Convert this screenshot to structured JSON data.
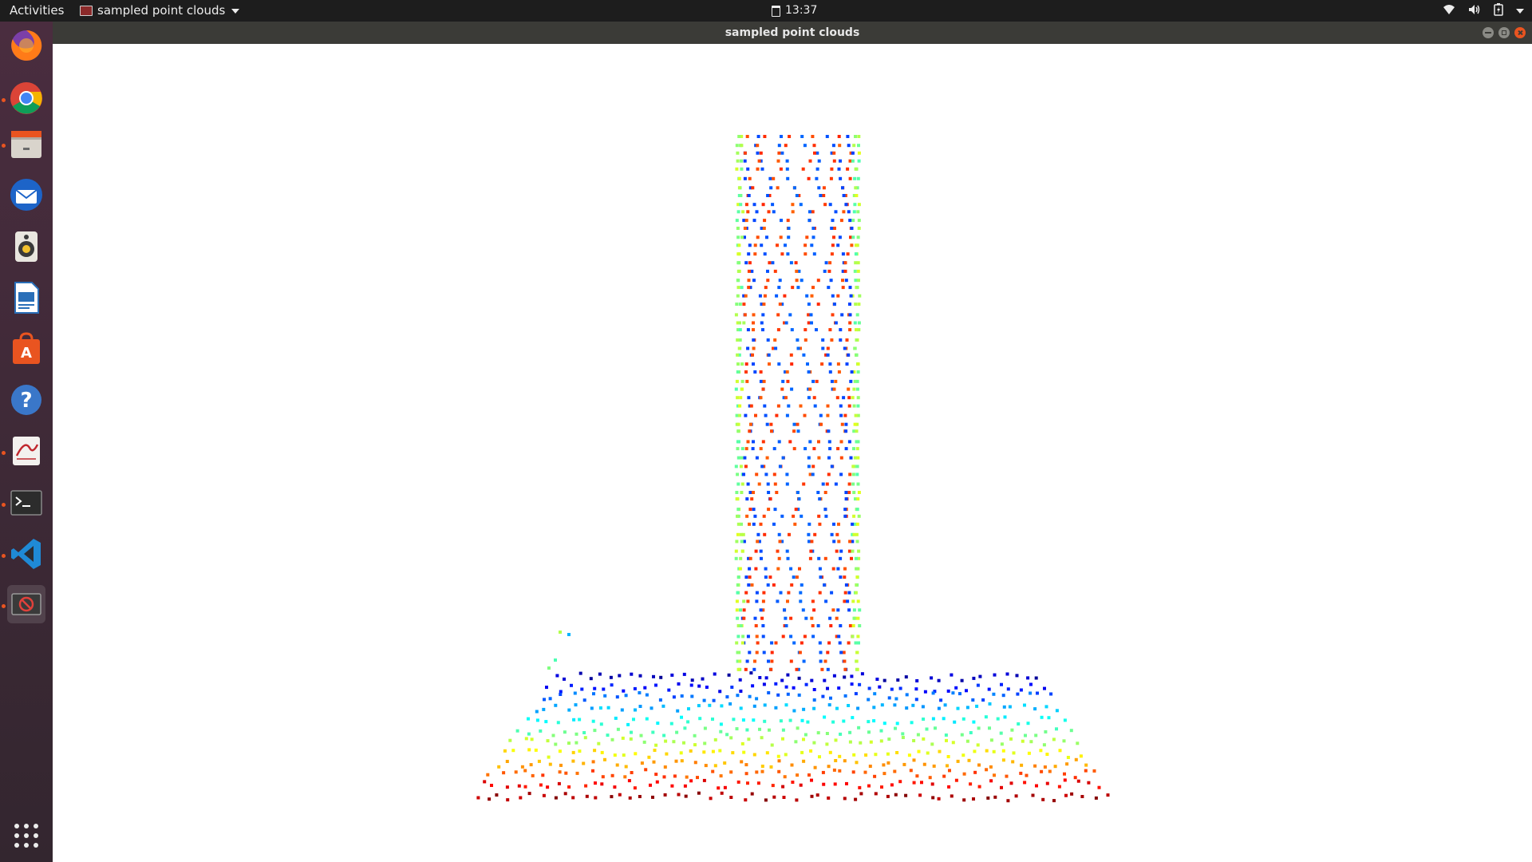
{
  "topbar": {
    "activities": "Activities",
    "app_name": "sampled point clouds",
    "clock": "13:37"
  },
  "window": {
    "title": "sampled point clouds"
  },
  "dock": {
    "items": [
      {
        "name": "firefox-icon",
        "running": false
      },
      {
        "name": "chrome-icon",
        "running": true
      },
      {
        "name": "files-icon",
        "running": true
      },
      {
        "name": "thunderbird-icon",
        "running": false
      },
      {
        "name": "rhythmbox-icon",
        "running": false
      },
      {
        "name": "libreoffice-writer-icon",
        "running": false
      },
      {
        "name": "software-center-icon",
        "running": false
      },
      {
        "name": "help-icon",
        "running": false
      },
      {
        "name": "evince-icon",
        "running": true
      },
      {
        "name": "terminal-icon",
        "running": true
      },
      {
        "name": "vscode-icon",
        "running": true
      },
      {
        "name": "point-cloud-viewer-icon",
        "running": true
      }
    ]
  },
  "colors": {
    "accent": "#e95420",
    "topbar": "#1d1d1d",
    "titlebar": "#3b3b37"
  }
}
